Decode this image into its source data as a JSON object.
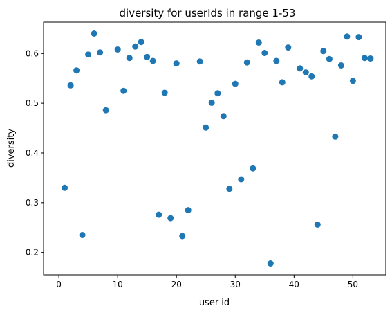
{
  "chart_data": {
    "type": "scatter",
    "title": "diversity for userIds in range 1-53",
    "xlabel": "user id",
    "ylabel": "diversity",
    "xlim": [
      -2.6,
      55.6
    ],
    "ylim": [
      0.155,
      0.663
    ],
    "xticks": [
      0,
      10,
      20,
      30,
      40,
      50
    ],
    "yticks": [
      0.2,
      0.3,
      0.4,
      0.5,
      0.6
    ],
    "xtick_labels": [
      "0",
      "10",
      "20",
      "30",
      "40",
      "50"
    ],
    "ytick_labels": [
      "0.2",
      "0.3",
      "0.4",
      "0.5",
      "0.6"
    ],
    "grid": false,
    "marker_color": "#1f77b4",
    "x": [
      1,
      2,
      3,
      4,
      5,
      6,
      7,
      8,
      10,
      11,
      12,
      13,
      14,
      15,
      16,
      17,
      18,
      19,
      20,
      21,
      22,
      24,
      25,
      26,
      27,
      28,
      29,
      30,
      31,
      32,
      33,
      34,
      35,
      36,
      37,
      38,
      39,
      41,
      42,
      43,
      44,
      45,
      46,
      47,
      48,
      49,
      50,
      51,
      52,
      53
    ],
    "y": [
      0.33,
      0.536,
      0.566,
      0.235,
      0.598,
      0.64,
      0.602,
      0.486,
      0.608,
      0.525,
      0.591,
      0.614,
      0.623,
      0.593,
      0.585,
      0.276,
      0.521,
      0.269,
      0.58,
      0.233,
      0.285,
      0.584,
      0.451,
      0.501,
      0.52,
      0.474,
      0.328,
      0.539,
      0.347,
      0.582,
      0.369,
      0.622,
      0.601,
      0.178,
      0.585,
      0.542,
      0.612,
      0.57,
      0.562,
      0.554,
      0.256,
      0.605,
      0.589,
      0.433,
      0.576,
      0.634,
      0.545,
      0.633,
      0.591,
      0.59
    ]
  }
}
